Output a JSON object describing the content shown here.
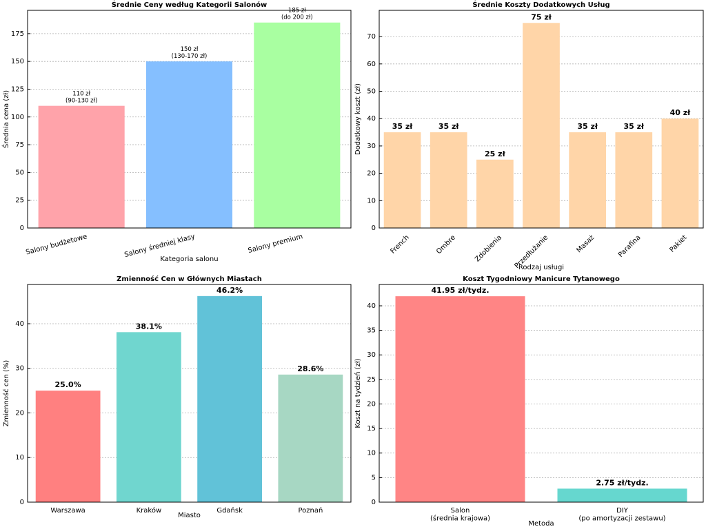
{
  "chart_data": [
    {
      "type": "bar",
      "title": "Średnie Ceny według Kategorii Salonów",
      "xlabel": "Kategoria salonu",
      "ylabel": "Średnia cena (zł)",
      "categories": [
        "Salony budżetowe",
        "Salony średniej klasy",
        "Salony premium"
      ],
      "values": [
        110,
        150,
        185
      ],
      "value_labels": [
        "110 zł\n(90-130 zł)",
        "150 zł\n(130-170 zł)",
        "185 zł\n(do 200 zł)"
      ],
      "colors": [
        "#ffa3aa",
        "#85bfff",
        "#a9ffa1"
      ],
      "ylim": [
        0,
        196
      ],
      "yticks": [
        0,
        25,
        50,
        75,
        100,
        125,
        150,
        175
      ],
      "grid": true
    },
    {
      "type": "bar",
      "title": "Średnie Koszty Dodatkowych Usług",
      "xlabel": "Rodzaj usługi",
      "ylabel": "Dodatkowy koszt (zł)",
      "categories": [
        "French",
        "Ombre",
        "Zdobienia",
        "Przedłużanie",
        "Masaż",
        "Parafina",
        "Pakiet"
      ],
      "values": [
        35,
        35,
        25,
        75,
        35,
        35,
        40
      ],
      "value_labels": [
        "35 zł",
        "35 zł",
        "25 zł",
        "75 zł",
        "35 zł",
        "35 zł",
        "40 zł"
      ],
      "color": "#ffd5a8",
      "ylim": [
        0,
        79.6
      ],
      "yticks": [
        0,
        10,
        20,
        30,
        40,
        50,
        60,
        70
      ],
      "grid": true
    },
    {
      "type": "bar",
      "title": "Zmienność Cen w Głównych Miastach",
      "xlabel": "Miasto",
      "ylabel": "Zmienność cen (%)",
      "categories": [
        "Warszawa",
        "Kraków",
        "Gdańsk",
        "Poznań"
      ],
      "values": [
        25.0,
        38.1,
        46.2,
        28.6
      ],
      "value_labels": [
        "25.0%",
        "38.1%",
        "46.2%",
        "28.6%"
      ],
      "colors": [
        "#ff8080",
        "#70d6cf",
        "#61c2d8",
        "#a7d7c3"
      ],
      "ylim": [
        0,
        48.8
      ],
      "yticks": [
        0,
        10,
        20,
        30,
        40
      ],
      "grid": true
    },
    {
      "type": "bar",
      "title": "Koszt Tygodniowy Manicure Tytanowego",
      "xlabel": "Metoda",
      "ylabel": "Koszt na tydzień (zł)",
      "categories": [
        "Salon\n(średnia krajowa)",
        "DIY\n(po amortyzacji zestawu)"
      ],
      "values": [
        41.95,
        2.75
      ],
      "value_labels": [
        "41.95 zł/tydz.",
        "2.75 zł/tydz."
      ],
      "colors": [
        "#ff8585",
        "#66d7cf"
      ],
      "ylim": [
        0,
        44.35
      ],
      "yticks": [
        0,
        5,
        10,
        15,
        20,
        25,
        30,
        35,
        40
      ],
      "grid": true
    }
  ]
}
